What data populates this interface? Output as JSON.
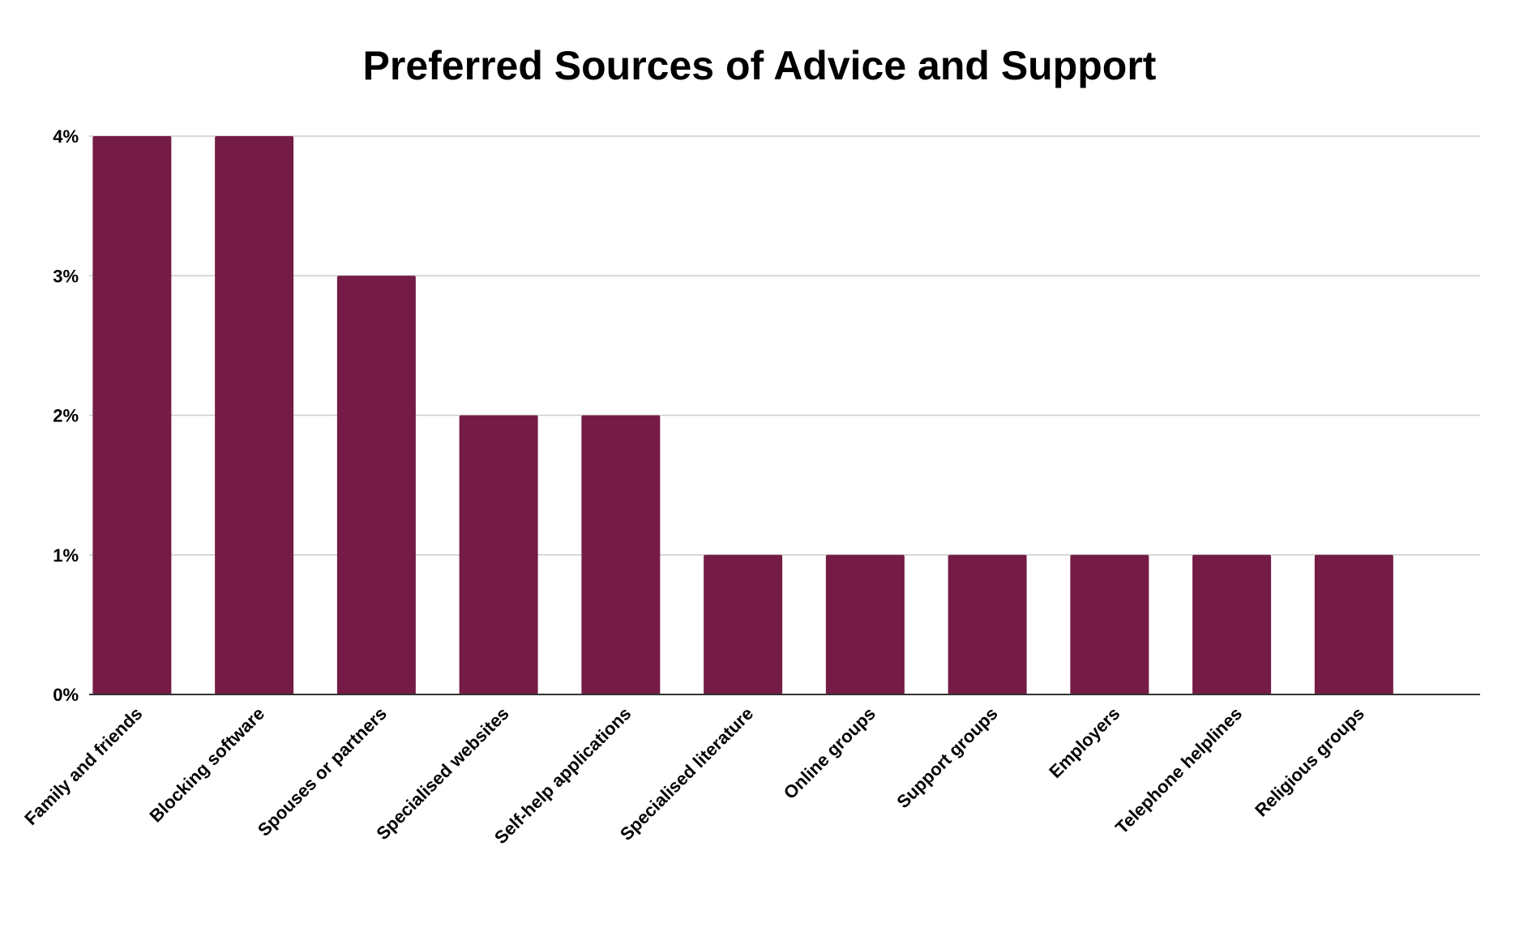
{
  "chart_data": {
    "type": "bar",
    "title": "Preferred Sources of Advice and Support",
    "xlabel": "",
    "ylabel": "",
    "categories": [
      "Family and friends",
      "Blocking software",
      "Spouses or partners",
      "Specialised websites",
      "Self-help applications",
      "Specialised literature",
      "Online groups",
      "Support groups",
      "Employers",
      "Telephone helplines",
      "Religious groups"
    ],
    "values": [
      4,
      4,
      3,
      2,
      2,
      1,
      1,
      1,
      1,
      1,
      1
    ],
    "ylim": [
      0,
      4
    ],
    "yticks": [
      0,
      1,
      2,
      3,
      4
    ],
    "ytick_labels": [
      "0%",
      "1%",
      "2%",
      "3%",
      "4%"
    ],
    "grid": true,
    "legend": "none",
    "bar_color": "#741c45"
  }
}
